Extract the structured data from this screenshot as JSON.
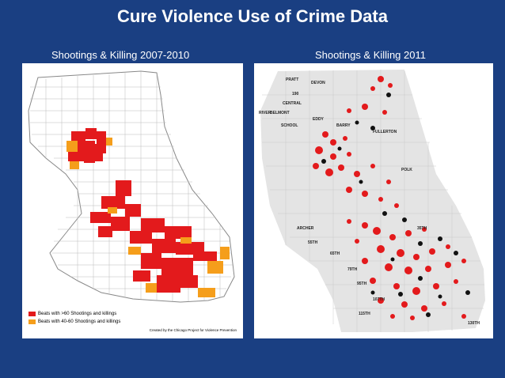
{
  "title": "Cure Violence Use of Crime Data",
  "left": {
    "caption": "Shootings & Killing 2007-2010",
    "legend": [
      {
        "label": "Beats with >60 Shootings and killings",
        "color": "#e31a1c"
      },
      {
        "label": "Beats with 40-60 Shootings and killings",
        "color": "#f59e1b"
      }
    ],
    "credit": "Created by the Chicago Project for Violence Prevention"
  },
  "right": {
    "caption": "Shootings & Killing 2011",
    "streets": [
      "PRATT",
      "DEVON",
      "190",
      "CENTRAL",
      "RIVER",
      "BELMONT",
      "SCHOOL",
      "EDDY",
      "BARRY",
      "FULLERTON",
      "POLK",
      "ARCHER",
      "35TH",
      "55TH",
      "65TH",
      "79TH",
      "95TH",
      "107TH",
      "115TH",
      "130TH"
    ]
  },
  "colors": {
    "background": "#1a3f82",
    "red": "#e31a1c",
    "orange": "#f59e1b",
    "black": "#111111"
  }
}
